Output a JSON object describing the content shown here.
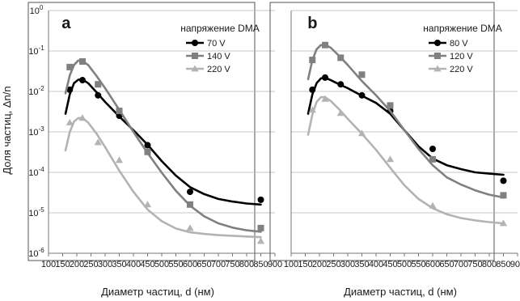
{
  "figure": {
    "ylabel": "Доля частиц, Δn/n",
    "xlabel": "Диаметр частиц, d (нм)"
  },
  "chart_data": [
    {
      "panel": "a",
      "type": "scatter",
      "x_scale": "linear",
      "y_scale": "log",
      "xlim": [
        100,
        900
      ],
      "ylim": [
        1e-06,
        1
      ],
      "x_ticks": [
        100,
        150,
        200,
        250,
        300,
        350,
        400,
        450,
        500,
        550,
        600,
        650,
        700,
        750,
        800,
        850,
        900
      ],
      "x_tick_labels": [
        "100",
        "150",
        "200",
        "250",
        "300",
        "350",
        "400",
        "450",
        "500",
        "550",
        "600",
        "650",
        "700",
        "750",
        "800",
        "850",
        "900"
      ],
      "y_ticks": [
        1e-06,
        1e-05,
        0.0001,
        0.001,
        0.01,
        0.1,
        1
      ],
      "y_tick_labels": [
        [
          "10",
          "-6"
        ],
        [
          "10",
          "-5"
        ],
        [
          "10",
          "-4"
        ],
        [
          "10",
          "-3"
        ],
        [
          "10",
          "-2"
        ],
        [
          "10",
          "-1"
        ],
        [
          "10",
          "0"
        ]
      ],
      "grid": "horizontal",
      "legend_title": "напряжение DMA",
      "legend_position": "top-right",
      "series": [
        {
          "name": "70 V",
          "marker": "circle",
          "color": "#000000",
          "points": [
            [
              175,
              0.011
            ],
            [
              220,
              0.019
            ],
            [
              275,
              0.008
            ],
            [
              350,
              0.0025
            ],
            [
              450,
              0.00047
            ],
            [
              600,
              3.3e-05
            ],
            [
              850,
              2.1e-05
            ]
          ],
          "fit": [
            [
              160,
              0.0028
            ],
            [
              175,
              0.0085
            ],
            [
              190,
              0.016
            ],
            [
              205,
              0.0195
            ],
            [
              220,
              0.0198
            ],
            [
              240,
              0.016
            ],
            [
              270,
              0.0095
            ],
            [
              300,
              0.0055
            ],
            [
              350,
              0.0024
            ],
            [
              400,
              0.0011
            ],
            [
              450,
              0.00048
            ],
            [
              500,
              0.00019
            ],
            [
              550,
              8.3e-05
            ],
            [
              600,
              4.3e-05
            ],
            [
              650,
              2.9e-05
            ],
            [
              700,
              2.2e-05
            ],
            [
              750,
              1.9e-05
            ],
            [
              800,
              1.7e-05
            ],
            [
              850,
              1.6e-05
            ]
          ]
        },
        {
          "name": "140 V",
          "marker": "square",
          "color": "#808080",
          "points": [
            [
              175,
              0.04
            ],
            [
              220,
              0.055
            ],
            [
              275,
              0.015
            ],
            [
              350,
              0.0033
            ],
            [
              450,
              0.00032
            ],
            [
              600,
              1.6e-05
            ],
            [
              850,
              4.2e-06
            ]
          ],
          "fit": [
            [
              160,
              0.009
            ],
            [
              175,
              0.025
            ],
            [
              190,
              0.045
            ],
            [
              205,
              0.058
            ],
            [
              220,
              0.057
            ],
            [
              240,
              0.045
            ],
            [
              270,
              0.024
            ],
            [
              300,
              0.012
            ],
            [
              350,
              0.0035
            ],
            [
              400,
              0.001
            ],
            [
              450,
              0.0003
            ],
            [
              500,
              9.8e-05
            ],
            [
              550,
              3.5e-05
            ],
            [
              600,
              1.5e-05
            ],
            [
              650,
              8.2e-06
            ],
            [
              700,
              5.5e-06
            ],
            [
              750,
              4.3e-06
            ],
            [
              800,
              3.7e-06
            ],
            [
              850,
              3.4e-06
            ]
          ]
        },
        {
          "name": "220 V",
          "marker": "triangle",
          "color": "#b3b3b3",
          "points": [
            [
              175,
              0.0017
            ],
            [
              220,
              0.0022
            ],
            [
              275,
              0.00055
            ],
            [
              350,
              0.0002
            ],
            [
              450,
              1.6e-05
            ],
            [
              600,
              4.2e-06
            ],
            [
              850,
              2e-06
            ]
          ],
          "fit": [
            [
              160,
              0.00035
            ],
            [
              175,
              0.001
            ],
            [
              190,
              0.0018
            ],
            [
              205,
              0.0022
            ],
            [
              220,
              0.0022
            ],
            [
              240,
              0.0017
            ],
            [
              270,
              0.0009
            ],
            [
              300,
              0.00042
            ],
            [
              350,
              0.00011
            ],
            [
              400,
              3.3e-05
            ],
            [
              450,
              1.2e-05
            ],
            [
              500,
              6.2e-06
            ],
            [
              550,
              4.1e-06
            ],
            [
              600,
              3.3e-06
            ],
            [
              650,
              3e-06
            ],
            [
              700,
              2.8e-06
            ],
            [
              750,
              2.7e-06
            ],
            [
              800,
              2.6e-06
            ],
            [
              850,
              2.5e-06
            ]
          ]
        }
      ]
    },
    {
      "panel": "b",
      "type": "scatter",
      "x_scale": "linear",
      "y_scale": "log",
      "xlim": [
        100,
        900
      ],
      "ylim": [
        1e-06,
        1
      ],
      "x_ticks": [
        100,
        150,
        200,
        250,
        300,
        350,
        400,
        450,
        500,
        550,
        600,
        650,
        700,
        750,
        800,
        850,
        900
      ],
      "x_tick_labels": [
        "100",
        "150",
        "200",
        "250",
        "300",
        "350",
        "400",
        "450",
        "500",
        "550",
        "600",
        "650",
        "700",
        "750",
        "800",
        "850",
        "900"
      ],
      "y_ticks": [
        1e-06,
        1e-05,
        0.0001,
        0.001,
        0.01,
        0.1,
        1
      ],
      "y_tick_labels": [
        [
          "10",
          "-6"
        ],
        [
          "10",
          "-5"
        ],
        [
          "10",
          "-4"
        ],
        [
          "10",
          "-3"
        ],
        [
          "10",
          "-2"
        ],
        [
          "10",
          "-1"
        ],
        [
          "10",
          "0"
        ]
      ],
      "grid": "horizontal",
      "legend_title": "напряжение DMA",
      "legend_position": "top-right",
      "series": [
        {
          "name": "80 V",
          "marker": "circle",
          "color": "#000000",
          "points": [
            [
              175,
              0.011
            ],
            [
              220,
              0.022
            ],
            [
              275,
              0.015
            ],
            [
              350,
              0.008
            ],
            [
              450,
              0.0033
            ],
            [
              600,
              0.00038
            ],
            [
              850,
              6.2e-05
            ]
          ],
          "fit": [
            [
              160,
              0.0028
            ],
            [
              175,
              0.0085
            ],
            [
              190,
              0.016
            ],
            [
              205,
              0.021
            ],
            [
              220,
              0.022
            ],
            [
              240,
              0.019
            ],
            [
              270,
              0.015
            ],
            [
              300,
              0.012
            ],
            [
              350,
              0.0078
            ],
            [
              400,
              0.0052
            ],
            [
              450,
              0.0028
            ],
            [
              500,
              0.0011
            ],
            [
              550,
              0.00044
            ],
            [
              600,
              0.00022
            ],
            [
              650,
              0.00015
            ],
            [
              700,
              0.00012
            ],
            [
              750,
              0.0001
            ],
            [
              800,
              9.3e-05
            ],
            [
              850,
              8.7e-05
            ]
          ]
        },
        {
          "name": "120 V",
          "marker": "square",
          "color": "#808080",
          "points": [
            [
              175,
              0.06
            ],
            [
              220,
              0.14
            ],
            [
              275,
              0.068
            ],
            [
              350,
              0.026
            ],
            [
              450,
              0.0045
            ],
            [
              600,
              0.00021
            ],
            [
              850,
              2.7e-05
            ]
          ],
          "fit": [
            [
              160,
              0.02
            ],
            [
              175,
              0.06
            ],
            [
              190,
              0.11
            ],
            [
              205,
              0.14
            ],
            [
              220,
              0.143
            ],
            [
              240,
              0.12
            ],
            [
              270,
              0.075
            ],
            [
              300,
              0.045
            ],
            [
              350,
              0.018
            ],
            [
              400,
              0.008
            ],
            [
              450,
              0.0033
            ],
            [
              500,
              0.0011
            ],
            [
              550,
              0.00038
            ],
            [
              600,
              0.00015
            ],
            [
              650,
              7.5e-05
            ],
            [
              700,
              5e-05
            ],
            [
              750,
              3.6e-05
            ],
            [
              800,
              2.8e-05
            ],
            [
              850,
              2.4e-05
            ]
          ]
        },
        {
          "name": "220 V",
          "marker": "triangle",
          "color": "#b3b3b3",
          "points": [
            [
              175,
              0.0035
            ],
            [
              220,
              0.0065
            ],
            [
              275,
              0.0029
            ],
            [
              350,
              0.00092
            ],
            [
              450,
              0.00021
            ],
            [
              600,
              1.5e-05
            ],
            [
              850,
              5.5e-06
            ]
          ],
          "fit": [
            [
              160,
              0.00085
            ],
            [
              175,
              0.0027
            ],
            [
              190,
              0.0055
            ],
            [
              205,
              0.0072
            ],
            [
              220,
              0.0072
            ],
            [
              240,
              0.0058
            ],
            [
              270,
              0.0036
            ],
            [
              300,
              0.0021
            ],
            [
              350,
              0.0009
            ],
            [
              400,
              0.00036
            ],
            [
              450,
              0.00013
            ],
            [
              500,
              4.8e-05
            ],
            [
              550,
              2.2e-05
            ],
            [
              600,
              1.3e-05
            ],
            [
              650,
              9.2e-06
            ],
            [
              700,
              7.4e-06
            ],
            [
              750,
              6.5e-06
            ],
            [
              800,
              5.9e-06
            ],
            [
              850,
              5.5e-06
            ]
          ]
        }
      ]
    }
  ]
}
